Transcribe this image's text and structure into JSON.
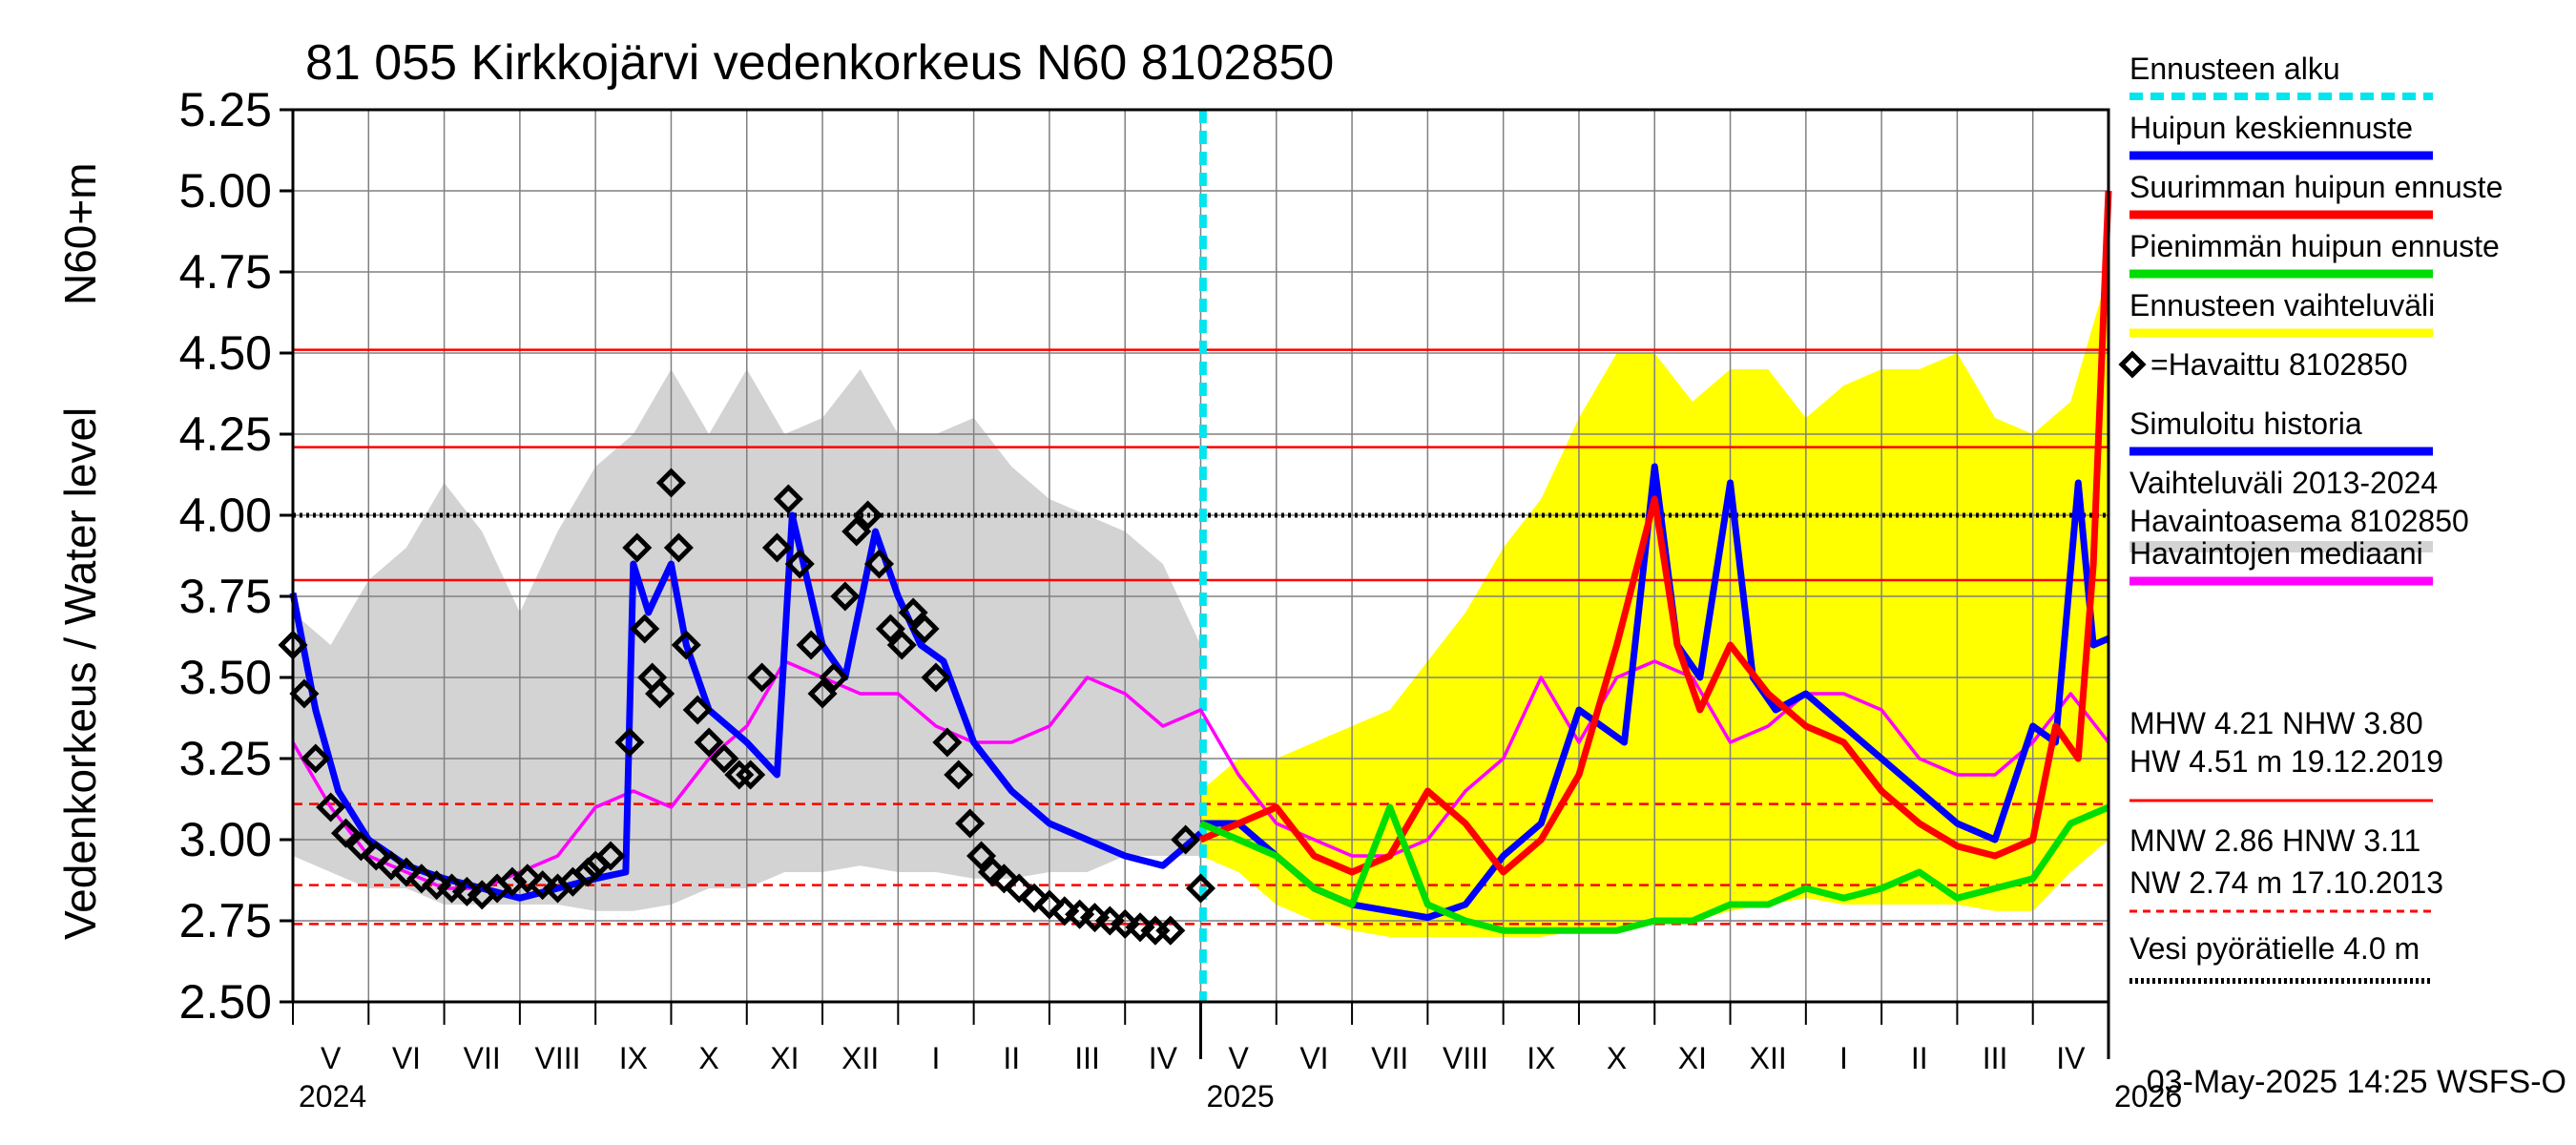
{
  "chart_data": {
    "type": "line",
    "title": "81 055 Kirkkojärvi vedenkorkeus N60 8102850",
    "ylabel": "Vedenkorkeus / Water level",
    "yunit_label": "N60+m",
    "ylim": [
      2.5,
      5.25
    ],
    "yticks": [
      "2.50",
      "2.75",
      "3.00",
      "3.25",
      "3.50",
      "3.75",
      "4.00",
      "4.25",
      "4.50",
      "4.75",
      "5.00",
      "5.25"
    ],
    "months": [
      "V",
      "VI",
      "VII",
      "VIII",
      "IX",
      "X",
      "XI",
      "XII",
      "I",
      "II",
      "III",
      "IV",
      "V",
      "VI",
      "VII",
      "VIII",
      "IX",
      "X",
      "XI",
      "XII",
      "I",
      "II",
      "III",
      "IV"
    ],
    "years": [
      "2024",
      "2025",
      "2026"
    ],
    "x_start": "2024-05-01",
    "x_end": "2026-05-31",
    "forecast_start_month": 12.03,
    "reference_lines": [
      {
        "name": "HW",
        "value": 4.51,
        "color": "#ff0000",
        "style": "solid"
      },
      {
        "name": "MHW",
        "value": 4.21,
        "color": "#ff0000",
        "style": "solid"
      },
      {
        "name": "NHW",
        "value": 3.8,
        "color": "#ff0000",
        "style": "solid"
      },
      {
        "name": "HNW",
        "value": 3.11,
        "color": "#ff0000",
        "style": "dashed"
      },
      {
        "name": "MNW",
        "value": 2.86,
        "color": "#ff0000",
        "style": "dashed"
      },
      {
        "name": "NW",
        "value": 2.74,
        "color": "#ff0000",
        "style": "dashed"
      },
      {
        "name": "Vesi pyörätielle",
        "value": 4.0,
        "color": "#000000",
        "style": "dotted"
      }
    ],
    "series": [
      {
        "name": "Vaihteluväli 2013-2024 Havaintoasema 8102850",
        "type": "band",
        "color": "#d3d3d3",
        "x": [
          0,
          0.5,
          1,
          1.5,
          2,
          2.5,
          3,
          3.5,
          4,
          4.5,
          5,
          5.5,
          6,
          6.5,
          7,
          7.5,
          8,
          8.5,
          9,
          9.5,
          10,
          10.5,
          11,
          11.5,
          12
        ],
        "low": [
          2.95,
          2.9,
          2.85,
          2.85,
          2.8,
          2.8,
          2.8,
          2.8,
          2.78,
          2.78,
          2.8,
          2.85,
          2.85,
          2.9,
          2.9,
          2.92,
          2.9,
          2.9,
          2.88,
          2.88,
          2.9,
          2.9,
          2.95,
          2.95,
          2.95
        ],
        "high": [
          3.7,
          3.6,
          3.8,
          3.9,
          4.1,
          3.95,
          3.7,
          3.95,
          4.15,
          4.25,
          4.45,
          4.25,
          4.45,
          4.25,
          4.3,
          4.45,
          4.25,
          4.25,
          4.3,
          4.15,
          4.05,
          4.0,
          3.95,
          3.85,
          3.6
        ]
      },
      {
        "name": "Ennusteen vaihteluväli",
        "type": "band",
        "color": "#ffff00",
        "x": [
          12,
          12.5,
          13,
          13.5,
          14,
          14.5,
          15,
          15.5,
          16,
          16.5,
          17,
          17.5,
          18,
          18.5,
          19,
          19.5,
          20,
          20.5,
          21,
          21.5,
          22,
          22.5,
          23,
          23.5,
          24
        ],
        "low": [
          2.95,
          2.9,
          2.8,
          2.75,
          2.72,
          2.7,
          2.7,
          2.7,
          2.7,
          2.7,
          2.72,
          2.72,
          2.75,
          2.75,
          2.78,
          2.8,
          2.82,
          2.8,
          2.8,
          2.8,
          2.8,
          2.78,
          2.78,
          2.9,
          3.0
        ],
        "high": [
          3.15,
          3.25,
          3.25,
          3.3,
          3.35,
          3.4,
          3.55,
          3.7,
          3.9,
          4.05,
          4.3,
          4.5,
          4.5,
          4.35,
          4.45,
          4.45,
          4.3,
          4.4,
          4.45,
          4.45,
          4.5,
          4.3,
          4.25,
          4.35,
          4.75
        ]
      },
      {
        "name": "Havaintojen mediaani",
        "type": "line",
        "color": "#ff00ff",
        "x": [
          0,
          0.5,
          1,
          1.5,
          2,
          2.5,
          3,
          3.5,
          4,
          4.5,
          5,
          5.5,
          6,
          6.5,
          7,
          7.5,
          8,
          8.5,
          9,
          9.5,
          10,
          10.5,
          11,
          11.5,
          12,
          12.5,
          13,
          13.5,
          14,
          14.5,
          15,
          15.5,
          16,
          16.5,
          17,
          17.5,
          18,
          18.5,
          19,
          19.5,
          20,
          20.5,
          21,
          21.5,
          22,
          22.5,
          23,
          23.5,
          24
        ],
        "values": [
          3.3,
          3.1,
          2.95,
          2.9,
          2.85,
          2.85,
          2.9,
          2.95,
          3.1,
          3.15,
          3.1,
          3.25,
          3.35,
          3.55,
          3.5,
          3.45,
          3.45,
          3.35,
          3.3,
          3.3,
          3.35,
          3.5,
          3.45,
          3.35,
          3.4,
          3.2,
          3.05,
          3.0,
          2.95,
          2.95,
          3.0,
          3.15,
          3.25,
          3.5,
          3.3,
          3.5,
          3.55,
          3.5,
          3.3,
          3.35,
          3.45,
          3.45,
          3.4,
          3.25,
          3.2,
          3.2,
          3.3,
          3.45,
          3.3
        ]
      },
      {
        "name": "Simuloitu historia",
        "type": "line",
        "color": "#0000ff",
        "x": [
          0,
          0.3,
          0.6,
          1,
          1.5,
          2,
          2.5,
          3,
          3.5,
          4,
          4.4,
          4.5,
          4.7,
          5,
          5.2,
          5.5,
          6,
          6.4,
          6.6,
          6.8,
          7,
          7.3,
          7.7,
          8,
          8.3,
          8.6,
          9,
          9.5,
          10,
          10.5,
          11,
          11.5,
          12
        ],
        "values": [
          3.76,
          3.4,
          3.15,
          3.0,
          2.92,
          2.88,
          2.85,
          2.82,
          2.85,
          2.88,
          2.9,
          3.85,
          3.7,
          3.85,
          3.6,
          3.4,
          3.3,
          3.2,
          4.0,
          3.8,
          3.6,
          3.5,
          3.95,
          3.75,
          3.6,
          3.55,
          3.3,
          3.15,
          3.05,
          3.0,
          2.95,
          2.92,
          3.02
        ]
      },
      {
        "name": "Huipun keskiennuste",
        "type": "line",
        "color": "#0000ff",
        "x": [
          12,
          12.5,
          13,
          13.5,
          14,
          14.5,
          15,
          15.5,
          16,
          16.5,
          17,
          17.3,
          17.6,
          18,
          18.3,
          18.6,
          19,
          19.3,
          19.6,
          20,
          20.5,
          21,
          21.5,
          22,
          22.5,
          23,
          23.3,
          23.6,
          23.8,
          24
        ],
        "values": [
          3.05,
          3.05,
          2.95,
          2.85,
          2.8,
          2.78,
          2.76,
          2.8,
          2.95,
          3.05,
          3.4,
          3.35,
          3.3,
          4.15,
          3.6,
          3.5,
          4.1,
          3.5,
          3.4,
          3.45,
          3.35,
          3.25,
          3.15,
          3.05,
          3.0,
          3.35,
          3.3,
          4.1,
          3.6,
          3.62
        ]
      },
      {
        "name": "Suurimman huipun ennuste",
        "type": "line",
        "color": "#ff0000",
        "x": [
          12,
          12.5,
          13,
          13.5,
          14,
          14.5,
          15,
          15.5,
          16,
          16.5,
          17,
          17.5,
          18,
          18.3,
          18.6,
          19,
          19.5,
          20,
          20.5,
          21,
          21.5,
          22,
          22.5,
          23,
          23.3,
          23.6,
          23.8,
          24
        ],
        "values": [
          3.0,
          3.05,
          3.1,
          2.95,
          2.9,
          2.95,
          3.15,
          3.05,
          2.9,
          3.0,
          3.2,
          3.6,
          4.05,
          3.6,
          3.4,
          3.6,
          3.45,
          3.35,
          3.3,
          3.15,
          3.05,
          2.98,
          2.95,
          3.0,
          3.35,
          3.25,
          3.85,
          5.0
        ]
      },
      {
        "name": "Pienimmän huipun ennuste",
        "type": "line",
        "color": "#00dd00",
        "x": [
          12,
          12.5,
          13,
          13.5,
          14,
          14.5,
          15,
          15.5,
          16,
          16.5,
          17,
          17.5,
          18,
          18.5,
          19,
          19.5,
          20,
          20.5,
          21,
          21.5,
          22,
          22.5,
          23,
          23.5,
          24
        ],
        "values": [
          3.05,
          3.0,
          2.95,
          2.85,
          2.8,
          3.1,
          2.8,
          2.75,
          2.72,
          2.72,
          2.72,
          2.72,
          2.75,
          2.75,
          2.8,
          2.8,
          2.85,
          2.82,
          2.85,
          2.9,
          2.82,
          2.85,
          2.88,
          3.05,
          3.1
        ]
      },
      {
        "name": "Havaittu 8102850",
        "type": "scatter",
        "color": "#000000",
        "x": [
          0,
          0.15,
          0.3,
          0.5,
          0.7,
          0.9,
          1.1,
          1.3,
          1.5,
          1.7,
          1.9,
          2.1,
          2.3,
          2.5,
          2.7,
          2.9,
          3.1,
          3.3,
          3.5,
          3.7,
          3.9,
          4.0,
          4.2,
          4.45,
          4.55,
          4.65,
          4.75,
          4.85,
          5.0,
          5.1,
          5.2,
          5.35,
          5.5,
          5.7,
          5.9,
          6.05,
          6.2,
          6.4,
          6.55,
          6.7,
          6.85,
          7.0,
          7.15,
          7.3,
          7.45,
          7.6,
          7.75,
          7.9,
          8.05,
          8.2,
          8.35,
          8.5,
          8.65,
          8.8,
          8.95,
          9.1,
          9.25,
          9.4,
          9.6,
          9.8,
          10.0,
          10.2,
          10.4,
          10.6,
          10.8,
          11.0,
          11.2,
          11.4,
          11.6,
          11.8,
          12.0
        ],
        "values": [
          3.6,
          3.45,
          3.25,
          3.1,
          3.02,
          2.98,
          2.95,
          2.92,
          2.9,
          2.88,
          2.86,
          2.85,
          2.84,
          2.83,
          2.85,
          2.87,
          2.88,
          2.86,
          2.85,
          2.87,
          2.9,
          2.92,
          2.95,
          3.3,
          3.9,
          3.65,
          3.5,
          3.45,
          4.1,
          3.9,
          3.6,
          3.4,
          3.3,
          3.25,
          3.2,
          3.2,
          3.5,
          3.9,
          4.05,
          3.85,
          3.6,
          3.45,
          3.5,
          3.75,
          3.95,
          4.0,
          3.85,
          3.65,
          3.6,
          3.7,
          3.65,
          3.5,
          3.3,
          3.2,
          3.05,
          2.95,
          2.9,
          2.88,
          2.85,
          2.82,
          2.8,
          2.78,
          2.77,
          2.76,
          2.75,
          2.74,
          2.73,
          2.72,
          2.72,
          3.0,
          2.85
        ]
      }
    ],
    "legend": [
      {
        "label": "Ennusteen alku",
        "color": "#00e5ee",
        "style": "dashed"
      },
      {
        "label": "Huipun keskiennuste",
        "color": "#0000ff",
        "style": "solid"
      },
      {
        "label": "Suurimman huipun ennuste",
        "color": "#ff0000",
        "style": "solid"
      },
      {
        "label": "Pienimmän huipun ennuste",
        "color": "#00dd00",
        "style": "solid"
      },
      {
        "label": "Ennusteen vaihteluväli",
        "color": "#ffff00",
        "style": "solid"
      },
      {
        "label": "=Havaittu 8102850",
        "color": "#000000",
        "style": "marker"
      },
      {
        "label": "Simuloitu historia",
        "color": "#0000ff",
        "style": "solid"
      },
      {
        "label": "Vaihteluväli 2013-2024",
        "label2": " Havaintoasema 8102850",
        "color": "#d3d3d3",
        "style": "solid"
      },
      {
        "label": "Havaintojen mediaani",
        "color": "#ff00ff",
        "style": "solid"
      }
    ],
    "stats": {
      "row1": "MHW   4.21 NHW   3.80",
      "row2": "HW   4.51 m 19.12.2019",
      "row3": "MNW   2.86 HNW   3.11",
      "row4": "NW   2.74 m 17.10.2013",
      "water_label": "Vesi pyörätielle 4.0 m"
    },
    "timestamp": "03-May-2025 14:25 WSFS-O"
  }
}
